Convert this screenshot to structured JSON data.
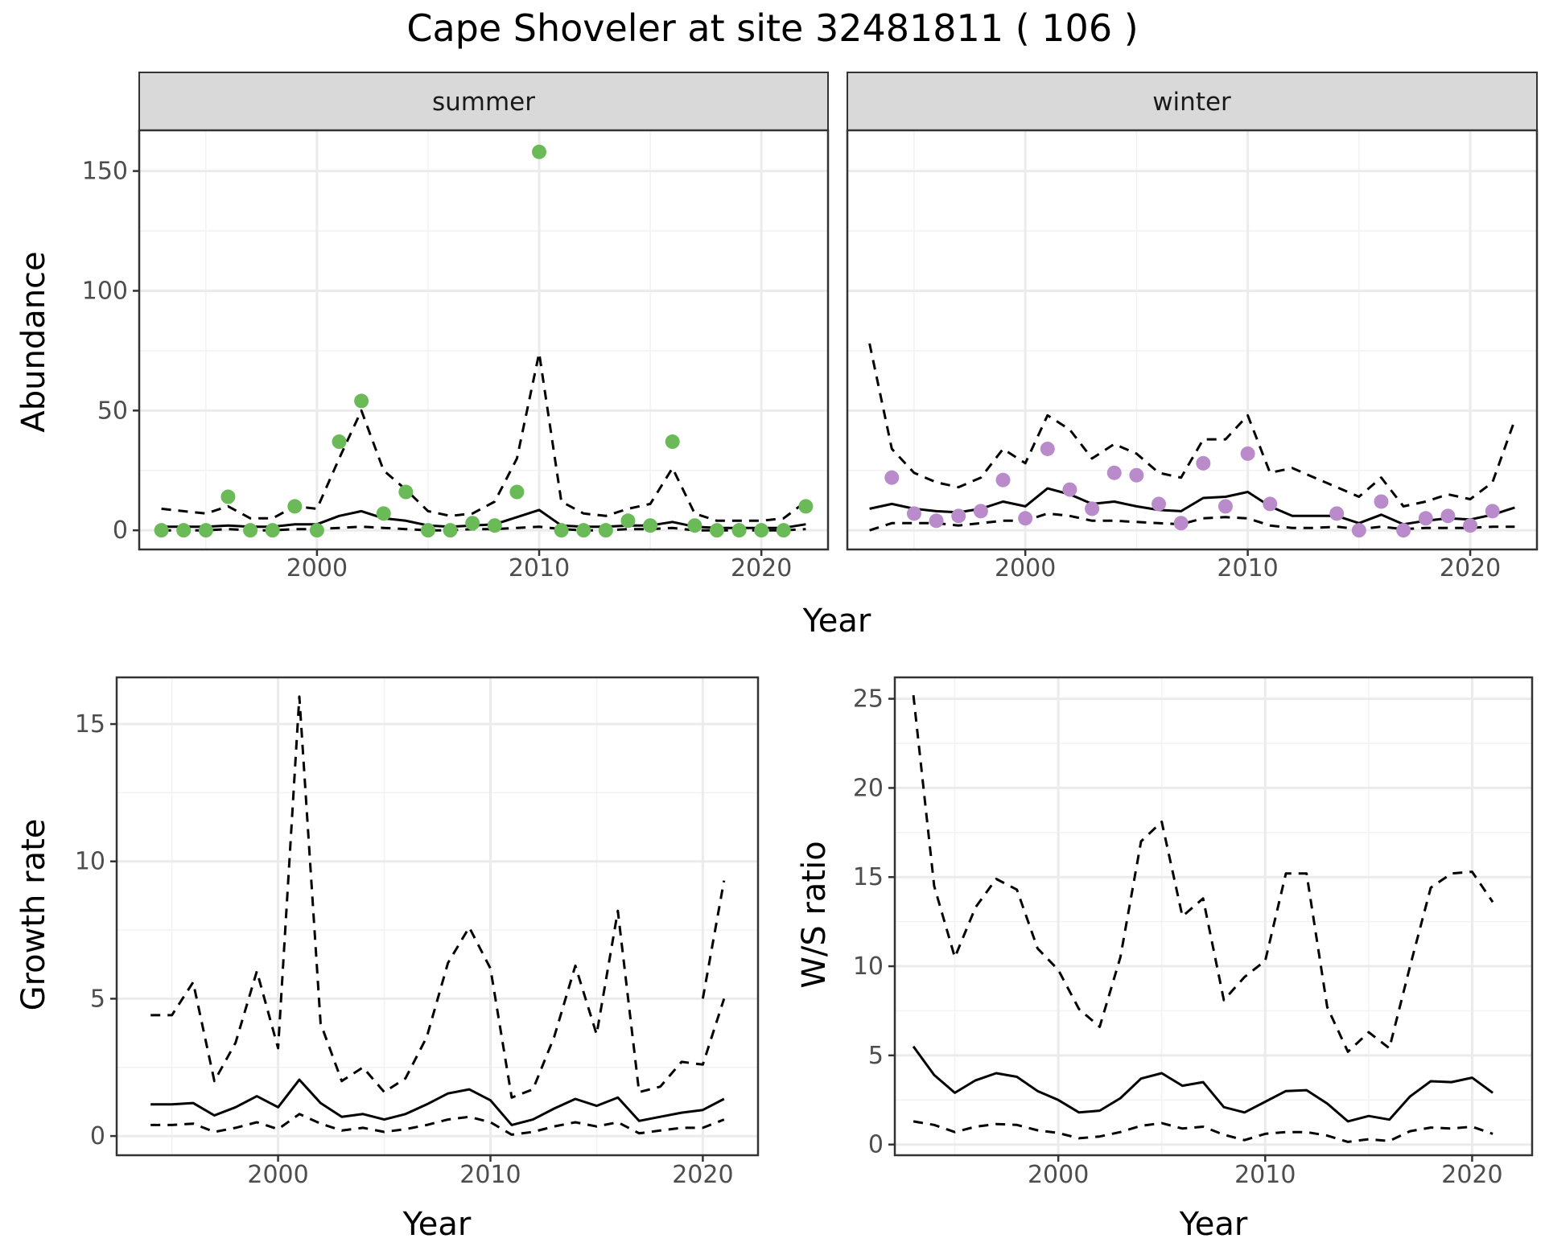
{
  "title": "Cape Shoveler at site 32481811 ( 106 )",
  "colors": {
    "summer_points": "#6ABA57",
    "winter_points": "#B98BCA",
    "lines": "#000000",
    "strip_fill": "#D9D9D9",
    "grid": "#EBEBEB"
  },
  "chart_data": [
    {
      "type": "scatter",
      "facet": "summer",
      "xlabel": "Year",
      "ylabel": "Abundance",
      "xlim": [
        1992,
        2023
      ],
      "ylim": [
        -8,
        167
      ],
      "xticks": [
        2000,
        2010,
        2020
      ],
      "yticks": [
        0,
        50,
        100,
        150
      ],
      "grid": true,
      "points": {
        "x": [
          1993,
          1994,
          1995,
          1996,
          1997,
          1998,
          1999,
          2000,
          2001,
          2002,
          2003,
          2004,
          2005,
          2006,
          2007,
          2008,
          2009,
          2010,
          2011,
          2012,
          2013,
          2014,
          2015,
          2016,
          2017,
          2018,
          2019,
          2020,
          2021,
          2022
        ],
        "y": [
          0,
          0,
          0,
          14,
          0,
          0,
          10,
          0,
          37,
          54,
          7,
          16,
          0,
          0,
          3,
          2,
          16,
          158,
          0,
          0,
          0,
          4,
          2,
          37,
          2,
          0,
          0,
          0,
          0,
          10
        ]
      },
      "lines": [
        {
          "style": "solid",
          "x": [
            1993,
            1994,
            1995,
            1996,
            1997,
            1998,
            1999,
            2000,
            2001,
            2002,
            2003,
            2004,
            2005,
            2006,
            2007,
            2008,
            2009,
            2010,
            2011,
            2012,
            2013,
            2014,
            2015,
            2016,
            2017,
            2018,
            2019,
            2020,
            2021,
            2022
          ],
          "y": [
            1.5,
            1.5,
            1.5,
            2,
            1.5,
            1.5,
            2.5,
            2.5,
            6,
            8,
            5,
            4,
            2,
            1.5,
            2,
            2.5,
            5.5,
            8.5,
            2,
            1.5,
            1.5,
            2,
            2,
            3.5,
            1.5,
            1,
            1,
            1,
            1,
            2.5
          ]
        },
        {
          "style": "dashed",
          "x": [
            1993,
            1994,
            1995,
            1996,
            1997,
            1998,
            1999,
            2000,
            2001,
            2002,
            2003,
            2004,
            2005,
            2006,
            2007,
            2008,
            2009,
            2010,
            2011,
            2012,
            2013,
            2014,
            2015,
            2016,
            2017,
            2018,
            2019,
            2020,
            2021,
            2022
          ],
          "y": [
            9,
            8,
            7,
            10,
            5,
            5,
            10,
            9,
            30,
            50,
            25,
            17,
            8,
            6,
            7,
            12,
            30,
            74,
            12,
            7,
            6,
            9,
            11,
            26,
            7,
            4,
            4,
            4,
            5,
            12
          ]
        },
        {
          "style": "dashed",
          "x": [
            1993,
            1994,
            1995,
            1996,
            1997,
            1998,
            1999,
            2000,
            2001,
            2002,
            2003,
            2004,
            2005,
            2006,
            2007,
            2008,
            2009,
            2010,
            2011,
            2012,
            2013,
            2014,
            2015,
            2016,
            2017,
            2018,
            2019,
            2020,
            2021,
            2022
          ],
          "y": [
            0,
            0,
            0,
            0.5,
            0,
            0,
            0.5,
            0.5,
            1,
            1.5,
            1,
            0.5,
            0,
            0,
            0.5,
            0.5,
            1,
            1.5,
            0.5,
            0,
            0,
            0.5,
            0.5,
            1,
            0,
            0,
            0,
            0,
            0,
            0.5
          ]
        }
      ]
    },
    {
      "type": "scatter",
      "facet": "winter",
      "xlabel": "Year",
      "ylabel": "Abundance",
      "xlim": [
        1992,
        2023
      ],
      "ylim": [
        -8,
        167
      ],
      "xticks": [
        2000,
        2010,
        2020
      ],
      "yticks": [
        0,
        50,
        100,
        150
      ],
      "grid": true,
      "points": {
        "x": [
          1994,
          1995,
          1996,
          1997,
          1998,
          1999,
          2000,
          2001,
          2002,
          2003,
          2004,
          2005,
          2006,
          2007,
          2008,
          2009,
          2010,
          2011,
          2014,
          2015,
          2016,
          2017,
          2018,
          2019,
          2020,
          2021
        ],
        "y": [
          22,
          7,
          4,
          6,
          8,
          21,
          5,
          34,
          17,
          9,
          24,
          23,
          11,
          3,
          28,
          10,
          32,
          11,
          7,
          0,
          12,
          0,
          5,
          6,
          2,
          8
        ]
      },
      "lines": [
        {
          "style": "solid",
          "x": [
            1993,
            1994,
            1995,
            1996,
            1997,
            1998,
            1999,
            2000,
            2001,
            2002,
            2003,
            2004,
            2005,
            2006,
            2007,
            2008,
            2009,
            2010,
            2011,
            2012,
            2013,
            2014,
            2015,
            2016,
            2017,
            2018,
            2019,
            2020,
            2021,
            2022
          ],
          "y": [
            9,
            11,
            9,
            8,
            7.5,
            9,
            12,
            10,
            17.5,
            15,
            11,
            12,
            10,
            8.5,
            8,
            13.5,
            14,
            16,
            10,
            6,
            6,
            6,
            3,
            6.5,
            2.5,
            4,
            5,
            4.5,
            6.5,
            9.5
          ]
        },
        {
          "style": "dashed",
          "x": [
            1993,
            1994,
            1995,
            1996,
            1997,
            1998,
            1999,
            2000,
            2001,
            2002,
            2003,
            2004,
            2005,
            2006,
            2007,
            2008,
            2009,
            2010,
            2011,
            2012,
            2013,
            2014,
            2015,
            2016,
            2017,
            2018,
            2019,
            2020,
            2021,
            2022
          ],
          "y": [
            78,
            34,
            24,
            20,
            18,
            22,
            34,
            28,
            48,
            42,
            30,
            36,
            32,
            24,
            22,
            38,
            38,
            48,
            24,
            26,
            22,
            18,
            14,
            22,
            10,
            12,
            15,
            13,
            20,
            46
          ]
        },
        {
          "style": "dashed",
          "x": [
            1993,
            1994,
            1995,
            1996,
            1997,
            1998,
            1999,
            2000,
            2001,
            2002,
            2003,
            2004,
            2005,
            2006,
            2007,
            2008,
            2009,
            2010,
            2011,
            2012,
            2013,
            2014,
            2015,
            2016,
            2017,
            2018,
            2019,
            2020,
            2021,
            2022
          ],
          "y": [
            0,
            3,
            3,
            3,
            2,
            3,
            4,
            4,
            7,
            6,
            4,
            4,
            3.5,
            3,
            2.5,
            5,
            5.5,
            5,
            2,
            1,
            1,
            1.5,
            0.5,
            1.5,
            0.5,
            1,
            1,
            1,
            1.5,
            1.5
          ]
        }
      ]
    },
    {
      "type": "line",
      "xlabel": "Year",
      "ylabel": "Growth rate",
      "xlim": [
        1992.4,
        2022.6
      ],
      "ylim": [
        -0.7,
        16.7
      ],
      "xticks": [
        2000,
        2010,
        2020
      ],
      "yticks": [
        0,
        5,
        10,
        15
      ],
      "grid": true,
      "lines": [
        {
          "style": "solid",
          "x": [
            1994,
            1995,
            1996,
            1997,
            1998,
            1999,
            2000,
            2001,
            2002,
            2003,
            2004,
            2005,
            2006,
            2007,
            2008,
            2009,
            2010,
            2011,
            2012,
            2013,
            2014,
            2015,
            2016,
            2017,
            2018,
            2019,
            2020,
            2021
          ],
          "y": [
            1.15,
            1.15,
            1.2,
            0.75,
            1.05,
            1.45,
            1.05,
            2.05,
            1.2,
            0.7,
            0.8,
            0.6,
            0.8,
            1.15,
            1.55,
            1.7,
            1.3,
            0.4,
            0.6,
            1.0,
            1.35,
            1.1,
            1.4,
            0.55,
            0.7,
            0.85,
            0.95,
            1.35
          ]
        },
        {
          "style": "dashed",
          "x": [
            1994,
            1995,
            1996,
            1997,
            1998,
            1999,
            2000,
            2001,
            2002,
            2003,
            2004,
            2005,
            2006,
            2007,
            2008,
            2009,
            2010,
            2011,
            2012,
            2013,
            2014,
            2015,
            2016,
            2017,
            2018,
            2019,
            2020,
            2021
          ],
          "y": [
            4.4,
            4.4,
            5.6,
            2.0,
            3.4,
            6.0,
            3.2,
            16.0,
            4.1,
            2.0,
            2.5,
            1.6,
            2.1,
            3.6,
            6.3,
            7.6,
            6.1,
            1.4,
            1.7,
            3.6,
            6.2,
            3.7,
            8.2,
            1.6,
            1.8,
            2.7,
            2.6,
            5.0
          ]
        },
        {
          "style": "dashed",
          "x": [
            1994,
            1995,
            1996,
            1997,
            1998,
            1999,
            2000,
            2001,
            2002,
            2003,
            2004,
            2005,
            2006,
            2007,
            2008,
            2009,
            2010,
            2011,
            2012,
            2013,
            2014,
            2015,
            2016,
            2017,
            2018,
            2019,
            2020,
            2021
          ],
          "y": [
            0.4,
            0.4,
            0.45,
            0.15,
            0.3,
            0.5,
            0.25,
            0.8,
            0.45,
            0.2,
            0.3,
            0.15,
            0.25,
            0.4,
            0.6,
            0.7,
            0.5,
            0.05,
            0.15,
            0.35,
            0.5,
            0.35,
            0.5,
            0.1,
            0.2,
            0.3,
            0.3,
            0.6
          ]
        }
      ],
      "extra_segment": {
        "x": [
          2020,
          2021
        ],
        "y": [
          5.0,
          9.3
        ]
      }
    },
    {
      "type": "line",
      "xlabel": "Year",
      "ylabel": "W/S ratio",
      "xlim": [
        1992.1,
        2022.9
      ],
      "ylim": [
        -0.6,
        26.2
      ],
      "xticks": [
        2000,
        2010,
        2020
      ],
      "yticks": [
        0,
        5,
        10,
        15,
        20,
        25
      ],
      "grid": true,
      "lines": [
        {
          "style": "solid",
          "x": [
            1993,
            1994,
            1995,
            1996,
            1997,
            1998,
            1999,
            2000,
            2001,
            2002,
            2003,
            2004,
            2005,
            2006,
            2007,
            2008,
            2009,
            2010,
            2011,
            2012,
            2013,
            2014,
            2015,
            2016,
            2017,
            2018,
            2019,
            2020,
            2021
          ],
          "y": [
            5.5,
            3.9,
            2.9,
            3.6,
            4.0,
            3.8,
            3.0,
            2.5,
            1.8,
            1.9,
            2.6,
            3.7,
            4.0,
            3.3,
            3.5,
            2.1,
            1.8,
            2.4,
            3.0,
            3.05,
            2.3,
            1.3,
            1.6,
            1.4,
            2.7,
            3.55,
            3.5,
            3.75,
            2.9
          ]
        },
        {
          "style": "dashed",
          "x": [
            1993,
            1994,
            1995,
            1996,
            1997,
            1998,
            1999,
            2000,
            2001,
            2002,
            2003,
            2004,
            2005,
            2006,
            2007,
            2008,
            2009,
            2010,
            2011,
            2012,
            2013,
            2014,
            2015,
            2016,
            2017,
            2018,
            2019,
            2020,
            2021
          ],
          "y": [
            25.2,
            14.5,
            10.5,
            13.3,
            14.9,
            14.3,
            11.0,
            9.8,
            7.6,
            6.6,
            10.5,
            17.0,
            18.1,
            12.8,
            13.8,
            8.1,
            9.4,
            10.3,
            15.2,
            15.2,
            7.7,
            5.2,
            6.3,
            5.4,
            10.0,
            14.4,
            15.2,
            15.3,
            13.6
          ]
        },
        {
          "style": "dashed",
          "x": [
            1993,
            1994,
            1995,
            1996,
            1997,
            1998,
            1999,
            2000,
            2001,
            2002,
            2003,
            2004,
            2005,
            2006,
            2007,
            2008,
            2009,
            2010,
            2011,
            2012,
            2013,
            2014,
            2015,
            2016,
            2017,
            2018,
            2019,
            2020,
            2021
          ],
          "y": [
            1.3,
            1.1,
            0.7,
            1.0,
            1.15,
            1.1,
            0.8,
            0.65,
            0.35,
            0.45,
            0.7,
            1.05,
            1.2,
            0.9,
            1.0,
            0.55,
            0.25,
            0.6,
            0.7,
            0.7,
            0.5,
            0.15,
            0.3,
            0.2,
            0.75,
            0.95,
            0.9,
            1.0,
            0.6
          ]
        }
      ]
    }
  ],
  "strips": [
    "summer",
    "winter"
  ],
  "axis_titles": {
    "top_x": "Year",
    "top_y": "Abundance",
    "bl_x": "Year",
    "bl_y": "Growth rate",
    "br_x": "Year",
    "br_y": "W/S ratio"
  }
}
